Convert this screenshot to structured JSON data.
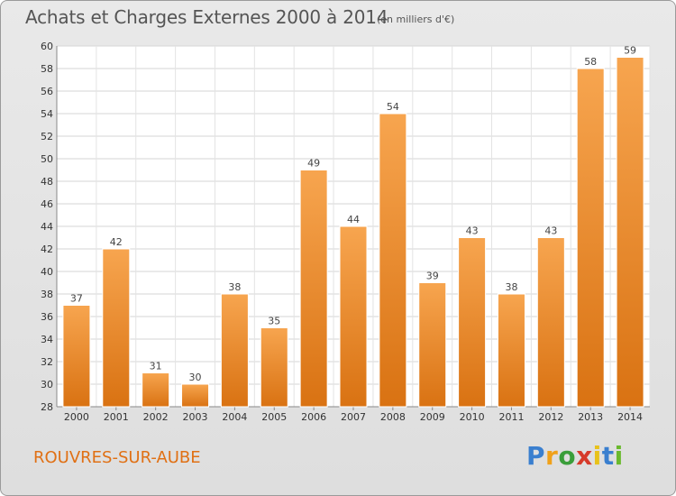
{
  "header": {
    "title": "Achats et Charges Externes 2000 à 2014",
    "unit_note": "(en milliers d'€)"
  },
  "footer": {
    "place": "ROUVRES-SUR-AUBE",
    "logo": "Proxiti"
  },
  "colors": {
    "bar_light": "#f7a54f",
    "bar_dark": "#d97212",
    "place_text": "#e07014"
  },
  "chart_data": {
    "type": "bar",
    "title": "Achats et Charges Externes 2000 à 2014",
    "subtitle": "(en milliers d'€)",
    "xlabel": "",
    "ylabel": "",
    "categories": [
      "2000",
      "2001",
      "2002",
      "2003",
      "2004",
      "2005",
      "2006",
      "2007",
      "2008",
      "2009",
      "2010",
      "2011",
      "2012",
      "2013",
      "2014"
    ],
    "values": [
      37,
      42,
      31,
      30,
      38,
      35,
      49,
      44,
      54,
      39,
      43,
      38,
      43,
      58,
      59
    ],
    "ylim": [
      28,
      60
    ],
    "yticks": [
      28,
      30,
      32,
      34,
      36,
      38,
      40,
      42,
      44,
      46,
      48,
      50,
      52,
      54,
      56,
      58,
      60
    ],
    "grid": true,
    "legend": "none"
  }
}
